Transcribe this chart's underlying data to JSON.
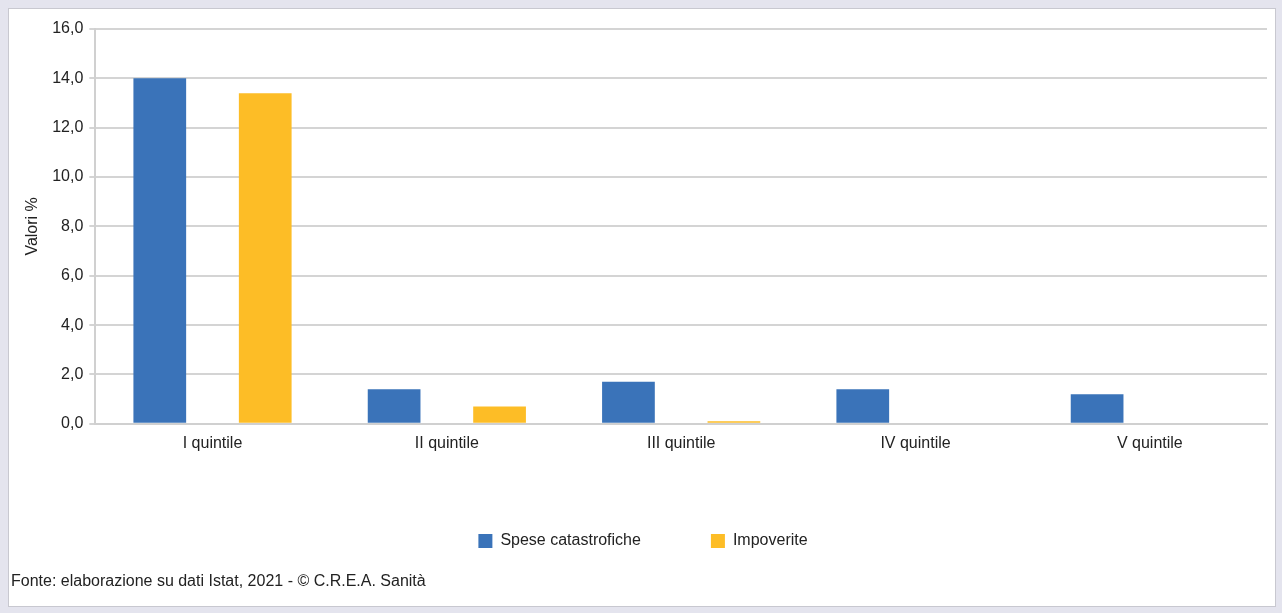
{
  "chart_data": {
    "type": "bar",
    "ylabel": "Valori %",
    "categories": [
      "I quintile",
      "II quintile",
      "III quintile",
      "IV quintile",
      "V quintile"
    ],
    "series": [
      {
        "name": "Spese catastrofiche",
        "color": "#3a73b9",
        "values": [
          14.0,
          1.4,
          1.7,
          1.4,
          1.2
        ]
      },
      {
        "name": "Impoverite",
        "color": "#fdbd26",
        "values": [
          13.4,
          0.7,
          0.1,
          0,
          0
        ]
      }
    ],
    "ylim": [
      0,
      16
    ],
    "yticks": [
      {
        "value": 0,
        "label": "0,0"
      },
      {
        "value": 2,
        "label": "2,0"
      },
      {
        "value": 4,
        "label": "4,0"
      },
      {
        "value": 6,
        "label": "6,0"
      },
      {
        "value": 8,
        "label": "8,0"
      },
      {
        "value": 10,
        "label": "10,0"
      },
      {
        "value": 12,
        "label": "12,0"
      },
      {
        "value": 14,
        "label": "14,0"
      },
      {
        "value": 16,
        "label": "16,0"
      }
    ],
    "grid": "y",
    "legend": "bottom",
    "annotations": [
      "Fonte: elaborazione su dati Istat, 2021 - © C.R.E.A. Sanità"
    ]
  }
}
